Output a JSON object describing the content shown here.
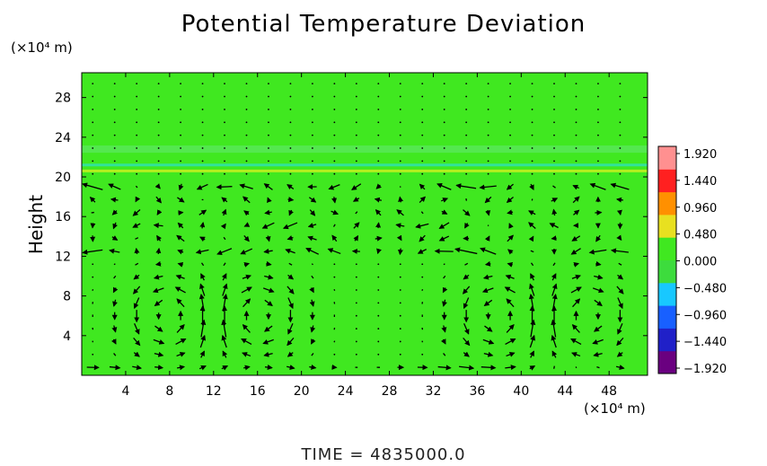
{
  "chart_data": {
    "type": "heatmap",
    "title": "Potential Temperature Deviation",
    "ylabel": "Height",
    "x_unit": "(×10⁴ m)",
    "y_unit": "(×10⁴ m)",
    "footer": "TIME  =  4835000.0",
    "xlim": [
      0,
      51.5
    ],
    "ylim": [
      0,
      30.5
    ],
    "x_ticks": [
      4,
      8,
      12,
      16,
      20,
      24,
      28,
      32,
      36,
      40,
      44,
      48
    ],
    "y_ticks": [
      4,
      8,
      12,
      16,
      20,
      24,
      28
    ],
    "field": {
      "background_value": 0.0,
      "features": [
        {
          "kind": "band",
          "y": 20.6,
          "value": 0.5
        },
        {
          "kind": "band",
          "y": 21.2,
          "value": -0.45
        },
        {
          "kind": "band",
          "y": 22.8,
          "value": 0.2
        }
      ]
    },
    "colorbar": {
      "min": -1.92,
      "max": 1.92,
      "labels": [
        "1.920",
        "1.440",
        "0.960",
        "0.480",
        "0.000",
        "−0.480",
        "−0.960",
        "−1.440",
        "−1.920"
      ],
      "colors": [
        "#6a0080",
        "#2020c8",
        "#1860ff",
        "#18c8ff",
        "#3ddc3d",
        "#40e820",
        "#e8e020",
        "#ff9000",
        "#ff2020",
        "#ff9090"
      ]
    },
    "vector_field": {
      "x_spacing": 2,
      "y_spacing": 1.3,
      "circulation_cells": [
        {
          "x": 8,
          "y": 6,
          "direction": "ccw"
        },
        {
          "x": 16,
          "y": 6,
          "direction": "cw"
        },
        {
          "x": 38,
          "y": 6,
          "direction": "ccw"
        },
        {
          "x": 46,
          "y": 6,
          "direction": "cw"
        }
      ],
      "jets": [
        {
          "y": 12.8,
          "u": -1.0
        },
        {
          "y": 14.7,
          "u": -0.6
        },
        {
          "y": 19.0,
          "u": -0.7
        },
        {
          "y": 0.8,
          "u": 0.6
        }
      ]
    }
  }
}
